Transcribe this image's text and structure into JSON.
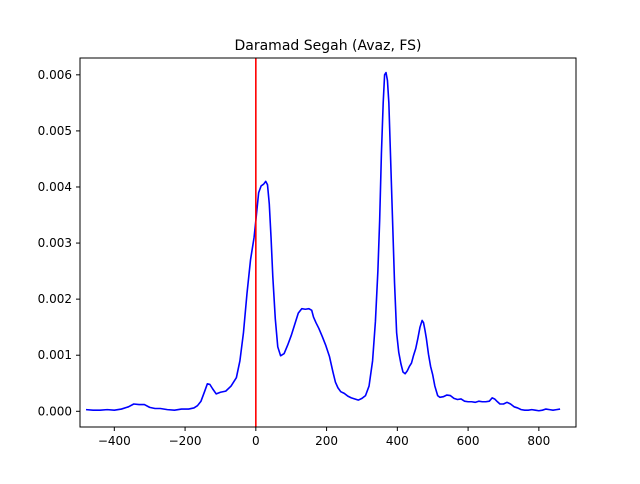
{
  "chart_data": {
    "type": "line",
    "title": "Daramad Segah (Avaz, FS)",
    "xlabel": "",
    "ylabel": "",
    "xlim": [
      -497,
      905
    ],
    "ylim": [
      -0.00028,
      0.0063
    ],
    "xticks": [
      -400,
      -200,
      0,
      200,
      400,
      600,
      800
    ],
    "xtick_labels": [
      "−400",
      "−200",
      "0",
      "200",
      "400",
      "600",
      "800"
    ],
    "yticks": [
      0.0,
      0.001,
      0.002,
      0.003,
      0.004,
      0.005,
      0.006
    ],
    "ytick_labels": [
      "0.000",
      "0.001",
      "0.002",
      "0.003",
      "0.004",
      "0.005",
      "0.006"
    ],
    "grid": false,
    "series": [
      {
        "color": "#0000ff",
        "x": [
          -480,
          -460,
          -440,
          -420,
          -400,
          -380,
          -360,
          -345,
          -330,
          -315,
          -300,
          -285,
          -270,
          -250,
          -230,
          -210,
          -190,
          -175,
          -165,
          -155,
          -145,
          -137,
          -130,
          -122,
          -112,
          -100,
          -85,
          -70,
          -55,
          -45,
          -35,
          -25,
          -15,
          -5,
          0,
          8,
          15,
          22,
          28,
          33,
          38,
          43,
          48,
          55,
          62,
          70,
          80,
          90,
          100,
          110,
          120,
          130,
          140,
          150,
          158,
          163,
          170,
          178,
          188,
          198,
          208,
          218,
          225,
          232,
          240,
          250,
          260,
          270,
          280,
          290,
          300,
          310,
          320,
          330,
          338,
          345,
          350,
          355,
          360,
          364,
          368,
          372,
          376,
          380,
          386,
          392,
          398,
          404,
          410,
          416,
          422,
          428,
          434,
          440,
          446,
          452,
          458,
          464,
          470,
          474,
          478,
          482,
          488,
          494,
          500,
          506,
          514,
          520,
          530,
          540,
          550,
          560,
          570,
          580,
          590,
          600,
          610,
          620,
          630,
          640,
          650,
          660,
          668,
          675,
          683,
          690,
          700,
          710,
          720,
          730,
          740,
          750,
          760,
          770,
          780,
          790,
          800,
          810,
          820,
          830,
          840,
          850,
          860
        ],
        "y": [
          3e-05,
          2e-05,
          2e-05,
          3e-05,
          2e-05,
          4e-05,
          8e-05,
          0.00013,
          0.00012,
          0.00012,
          7e-05,
          5e-05,
          5e-05,
          3e-05,
          2e-05,
          4e-05,
          4e-05,
          6e-05,
          0.0001,
          0.00018,
          0.00035,
          0.00049,
          0.00048,
          0.0004,
          0.00031,
          0.00034,
          0.00036,
          0.00045,
          0.0006,
          0.0009,
          0.0014,
          0.0021,
          0.0027,
          0.0031,
          0.0034,
          0.0039,
          0.00402,
          0.00405,
          0.0041,
          0.00404,
          0.0037,
          0.0031,
          0.0024,
          0.00165,
          0.00115,
          0.00099,
          0.00103,
          0.00118,
          0.00135,
          0.00155,
          0.00175,
          0.00183,
          0.00182,
          0.00183,
          0.0018,
          0.00168,
          0.00158,
          0.00148,
          0.00133,
          0.00117,
          0.00098,
          0.0007,
          0.00052,
          0.00042,
          0.00035,
          0.00032,
          0.00027,
          0.00024,
          0.00022,
          0.0002,
          0.00023,
          0.00028,
          0.00045,
          0.0009,
          0.0016,
          0.0025,
          0.0034,
          0.0046,
          0.0055,
          0.006,
          0.00604,
          0.0059,
          0.0055,
          0.0047,
          0.0035,
          0.0023,
          0.0014,
          0.00105,
          0.00085,
          0.0007,
          0.00067,
          0.00072,
          0.0008,
          0.00086,
          0.001,
          0.00112,
          0.0013,
          0.0015,
          0.00162,
          0.00158,
          0.00145,
          0.0013,
          0.00102,
          0.0008,
          0.00065,
          0.00045,
          0.00028,
          0.00025,
          0.00026,
          0.00029,
          0.00028,
          0.00023,
          0.00021,
          0.00022,
          0.00018,
          0.00017,
          0.00017,
          0.00016,
          0.00018,
          0.00017,
          0.00017,
          0.00018,
          0.00024,
          0.00022,
          0.00017,
          0.00013,
          0.00013,
          0.00016,
          0.00013,
          8e-05,
          6e-05,
          3e-05,
          2e-05,
          2e-05,
          3e-05,
          2e-05,
          1e-05,
          2e-05,
          4e-05,
          3e-05,
          2e-05,
          3e-05,
          4e-05
        ]
      }
    ],
    "reference_lines": [
      {
        "orientation": "vertical",
        "x": 0,
        "color": "#ff0000"
      }
    ]
  }
}
